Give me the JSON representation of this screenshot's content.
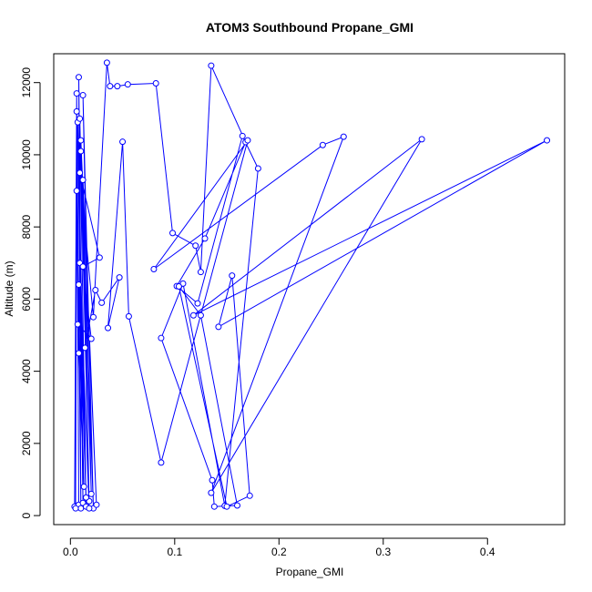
{
  "chart_data": {
    "type": "line",
    "title": "ATOM3 Southbound Propane_GMI",
    "xlabel": "Propane_GMI",
    "ylabel": "Altitude (m)",
    "xlim": [
      -0.016,
      0.474
    ],
    "ylim": [
      -250,
      12800
    ],
    "xticks": [
      0.0,
      0.1,
      0.2,
      0.3,
      0.4
    ],
    "xtick_labels": [
      "0.0",
      "0.1",
      "0.2",
      "0.3",
      "0.4"
    ],
    "yticks": [
      0,
      2000,
      4000,
      6000,
      8000,
      10000,
      12000
    ],
    "ytick_labels": [
      "0",
      "2000",
      "4000",
      "6000",
      "8000",
      "10000",
      "12000"
    ],
    "grid": false,
    "series_color": "#0000ff",
    "marker": "open-circle",
    "series": [
      {
        "x": [
          0.004,
          0.006,
          0.008,
          0.006,
          0.01,
          0.008,
          0.012,
          0.007,
          0.015,
          0.009,
          0.018,
          0.01,
          0.02,
          0.012,
          0.022,
          0.01,
          0.025,
          0.012,
          0.018,
          0.009,
          0.015,
          0.008,
          0.013,
          0.007,
          0.02,
          0.012,
          0.028,
          0.009,
          0.022,
          0.035,
          0.038,
          0.045,
          0.055,
          0.082,
          0.098,
          0.12,
          0.125,
          0.135,
          0.168,
          0.129,
          0.102,
          0.122,
          0.165,
          0.18,
          0.148,
          0.108,
          0.087,
          0.136,
          0.138,
          0.16,
          0.125,
          0.104,
          0.15,
          0.172,
          0.155,
          0.142,
          0.457,
          0.118,
          0.337,
          0.135,
          0.262,
          0.242,
          0.08,
          0.17,
          0.087,
          0.056,
          0.05,
          0.036,
          0.047,
          0.03,
          0.024,
          0.014,
          0.008,
          0.006,
          0.005
        ],
        "y": [
          250,
          11700,
          300,
          11200,
          200,
          12150,
          350,
          10900,
          250,
          11000,
          400,
          10100,
          600,
          11650,
          200,
          10400,
          300,
          9300,
          200,
          7000,
          500,
          6400,
          800,
          5300,
          4900,
          6900,
          7150,
          9500,
          5500,
          12550,
          11900,
          11900,
          11950,
          11980,
          7830,
          7480,
          6750,
          12470,
          10350,
          7680,
          6360,
          5880,
          10520,
          9620,
          270,
          6430,
          4920,
          980,
          250,
          280,
          5550,
          6350,
          250,
          550,
          6650,
          5230,
          10400,
          5550,
          10430,
          630,
          10500,
          10270,
          6830,
          10400,
          1470,
          5520,
          10360,
          5200,
          6600,
          5900,
          6250,
          4650,
          4500,
          9000,
          200
        ]
      }
    ]
  }
}
